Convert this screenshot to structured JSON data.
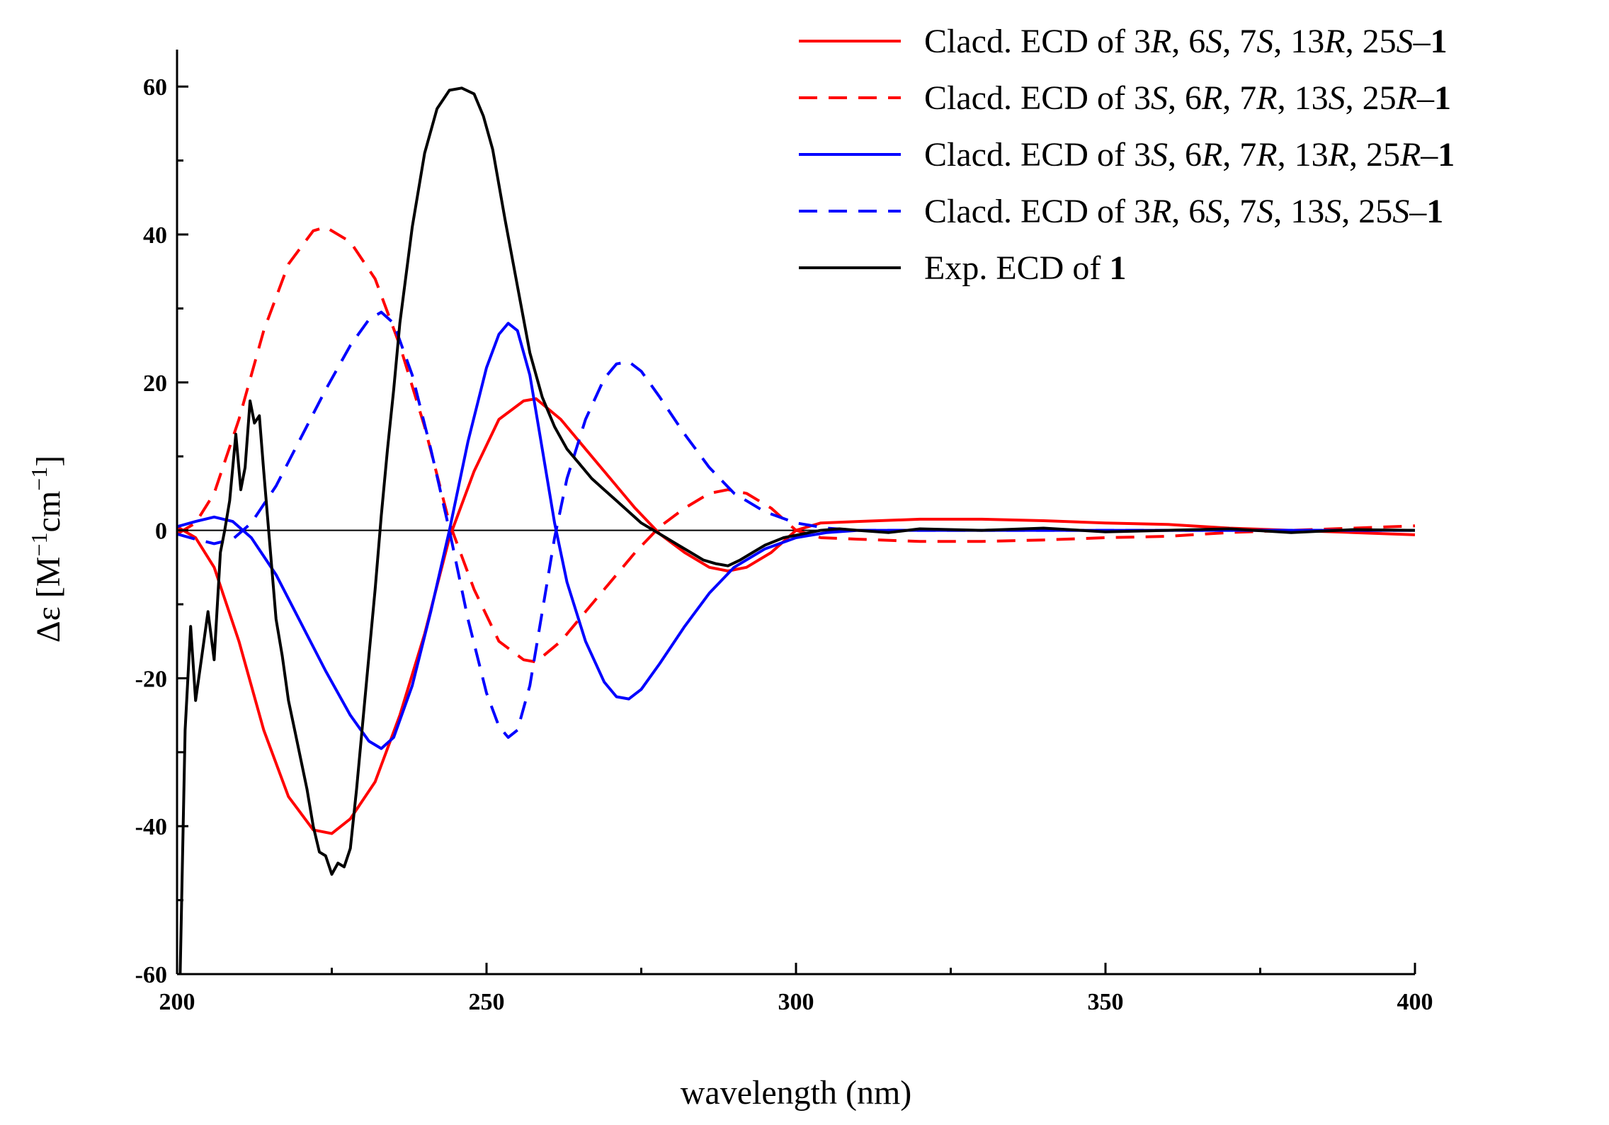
{
  "chart_data": {
    "type": "line",
    "title": "",
    "xlabel": "wavelength (nm)",
    "ylabel_parts": [
      "Δε [M",
      "−1",
      "cm",
      "−1",
      "]"
    ],
    "xlim": [
      200,
      400
    ],
    "ylim": [
      -60,
      65
    ],
    "xticks": [
      200,
      250,
      300,
      350,
      400
    ],
    "yticks": [
      -60,
      -40,
      -20,
      0,
      20,
      40,
      60
    ],
    "zero_line": true,
    "legend_position": "top-right",
    "series": [
      {
        "name": "Clacd. ECD of 3R, 6S, 7S, 13R, 25S–1",
        "legend_parts": [
          "Clacd. ECD of 3",
          "R",
          ", 6",
          "S",
          ", 7",
          "S",
          ", 13",
          "R",
          ", 25",
          "S",
          "–",
          "1"
        ],
        "color": "#ff0000",
        "dash": "solid",
        "x": [
          200,
          203,
          206,
          210,
          214,
          218,
          222,
          225,
          228,
          232,
          236,
          240,
          244,
          248,
          252,
          256,
          258,
          262,
          266,
          270,
          274,
          278,
          282,
          286,
          289,
          292,
          296,
          300,
          304,
          310,
          320,
          330,
          340,
          350,
          360,
          370,
          380,
          390,
          400
        ],
        "y": [
          0.5,
          -1,
          -5,
          -15,
          -27,
          -36,
          -40.5,
          -41,
          -39,
          -34,
          -25,
          -14,
          -1,
          8,
          15,
          17.5,
          17.8,
          15,
          11,
          7,
          3,
          -0.5,
          -3,
          -5,
          -5.5,
          -5,
          -3,
          0,
          1,
          1.2,
          1.5,
          1.5,
          1.3,
          1,
          0.8,
          0.3,
          0,
          -0.3,
          -0.6
        ]
      },
      {
        "name": "Clacd. ECD of 3S, 6R, 7R, 13S, 25R–1",
        "legend_parts": [
          "Clacd. ECD of 3",
          "S",
          ", 6",
          "R",
          ", 7",
          "R",
          ", 13",
          "S",
          ", 25",
          "R",
          "–",
          "1"
        ],
        "color": "#ff0000",
        "dash": "dashed",
        "x": [
          200,
          203,
          206,
          210,
          214,
          218,
          222,
          224,
          228,
          232,
          236,
          240,
          244,
          248,
          252,
          256,
          258,
          262,
          266,
          270,
          274,
          278,
          282,
          286,
          289,
          292,
          296,
          300,
          304,
          310,
          320,
          330,
          340,
          350,
          360,
          370,
          380,
          390,
          400
        ],
        "y": [
          -0.5,
          1,
          5,
          15,
          27,
          36,
          40.5,
          41,
          39,
          34,
          25,
          14,
          1,
          -8,
          -15,
          -17.5,
          -17.8,
          -15,
          -11,
          -7,
          -3,
          0.5,
          3,
          5,
          5.5,
          5,
          3,
          0,
          -1,
          -1.2,
          -1.5,
          -1.5,
          -1.3,
          -1,
          -0.8,
          -0.3,
          0,
          0.3,
          0.6
        ]
      },
      {
        "name": "Clacd. ECD of 3S, 6R, 7R, 13R, 25R–1",
        "legend_parts": [
          "Clacd. ECD of 3",
          "S",
          ", 6",
          "R",
          ", 7",
          "R",
          ", 13",
          "R",
          ", 25",
          "R",
          "–",
          "1"
        ],
        "color": "#0000ff",
        "dash": "solid",
        "x": [
          200,
          203,
          206,
          209,
          212,
          216,
          220,
          224,
          228,
          231,
          233,
          235,
          238,
          241,
          244,
          247,
          250,
          252,
          253.5,
          255,
          257,
          259,
          261,
          263,
          266,
          269,
          271,
          273,
          275,
          278,
          282,
          286,
          290,
          295,
          300,
          305,
          310,
          320,
          340,
          360,
          380,
          400
        ],
        "y": [
          0.5,
          1.2,
          1.8,
          1.2,
          -1,
          -6,
          -12.5,
          -19,
          -25,
          -28.5,
          -29.5,
          -28,
          -21,
          -11,
          0,
          12,
          22,
          26.5,
          28,
          27,
          21,
          11,
          1,
          -7,
          -15,
          -20.5,
          -22.5,
          -22.8,
          -21.5,
          -18,
          -13,
          -8.5,
          -5,
          -2.5,
          -1,
          -0.3,
          0,
          0,
          0,
          0,
          0,
          0
        ]
      },
      {
        "name": "Clacd. ECD of 3R, 6S, 7S, 13S, 25S–1",
        "legend_parts": [
          "Clacd. ECD of 3",
          "R",
          ", 6",
          "S",
          ", 7",
          "S",
          ", 13",
          "S",
          ", 25",
          "S",
          "–",
          "1"
        ],
        "color": "#0000ff",
        "dash": "dashed",
        "x": [
          200,
          203,
          206,
          209,
          212,
          216,
          220,
          224,
          228,
          231,
          233,
          235,
          238,
          241,
          244,
          247,
          250,
          252,
          253.5,
          255,
          257,
          259,
          261,
          263,
          266,
          269,
          271,
          273,
          275,
          278,
          282,
          286,
          290,
          295,
          300,
          305,
          310,
          320,
          340,
          360,
          380,
          400
        ],
        "y": [
          -0.5,
          -1.2,
          -1.8,
          -1.2,
          1,
          6,
          12.5,
          19,
          25,
          28.5,
          29.5,
          28,
          21,
          11,
          0,
          -12,
          -22,
          -26.5,
          -28,
          -27,
          -21,
          -11,
          -1,
          7,
          15,
          20.5,
          22.5,
          22.8,
          21.5,
          18,
          13,
          8.5,
          5,
          2.5,
          1,
          0.3,
          0,
          0,
          0,
          0,
          0,
          0
        ]
      },
      {
        "name": "Exp. ECD of 1",
        "legend_parts": [
          "Exp. ECD of ",
          "1"
        ],
        "color": "#000000",
        "dash": "solid",
        "x": [
          200.5,
          201.3,
          202.2,
          203,
          204,
          205,
          206,
          207,
          207.7,
          208.5,
          209.5,
          210.3,
          211,
          211.8,
          212.5,
          213.3,
          214,
          215,
          216,
          217,
          218,
          219,
          220,
          221,
          222,
          223,
          224,
          225,
          226,
          227,
          228,
          229,
          230,
          231,
          232,
          233,
          234,
          235,
          236,
          238,
          240,
          242,
          244,
          246,
          248,
          249.5,
          251,
          253,
          255,
          257,
          259,
          261,
          263,
          265,
          267,
          269,
          271,
          273,
          275,
          277,
          279,
          281,
          283,
          285,
          287,
          289,
          291,
          293,
          295,
          298,
          301,
          304,
          307,
          310,
          315,
          320,
          330,
          340,
          350,
          360,
          370,
          380,
          390,
          400
        ],
        "y": [
          -60,
          -27,
          -13,
          -23,
          -17,
          -11,
          -17.5,
          -3,
          0,
          4,
          13,
          5.5,
          8.5,
          17.5,
          14.5,
          15.5,
          8,
          -2,
          -12,
          -17,
          -23,
          -27,
          -31,
          -35,
          -40,
          -43.5,
          -44,
          -46.5,
          -45,
          -45.5,
          -43,
          -35,
          -26,
          -17,
          -8,
          2,
          11,
          19,
          28,
          41,
          51,
          57,
          59.5,
          59.8,
          59,
          56,
          51.5,
          42,
          33,
          24,
          18,
          14,
          11,
          9,
          7,
          5.5,
          4,
          2.5,
          1,
          0,
          -1,
          -2,
          -3,
          -4,
          -4.5,
          -4.8,
          -4,
          -3,
          -2,
          -1,
          -0.5,
          0,
          0.2,
          0,
          -0.3,
          0.2,
          0,
          0.3,
          -0.2,
          0,
          0.2,
          -0.3,
          0.1,
          0
        ]
      }
    ]
  }
}
